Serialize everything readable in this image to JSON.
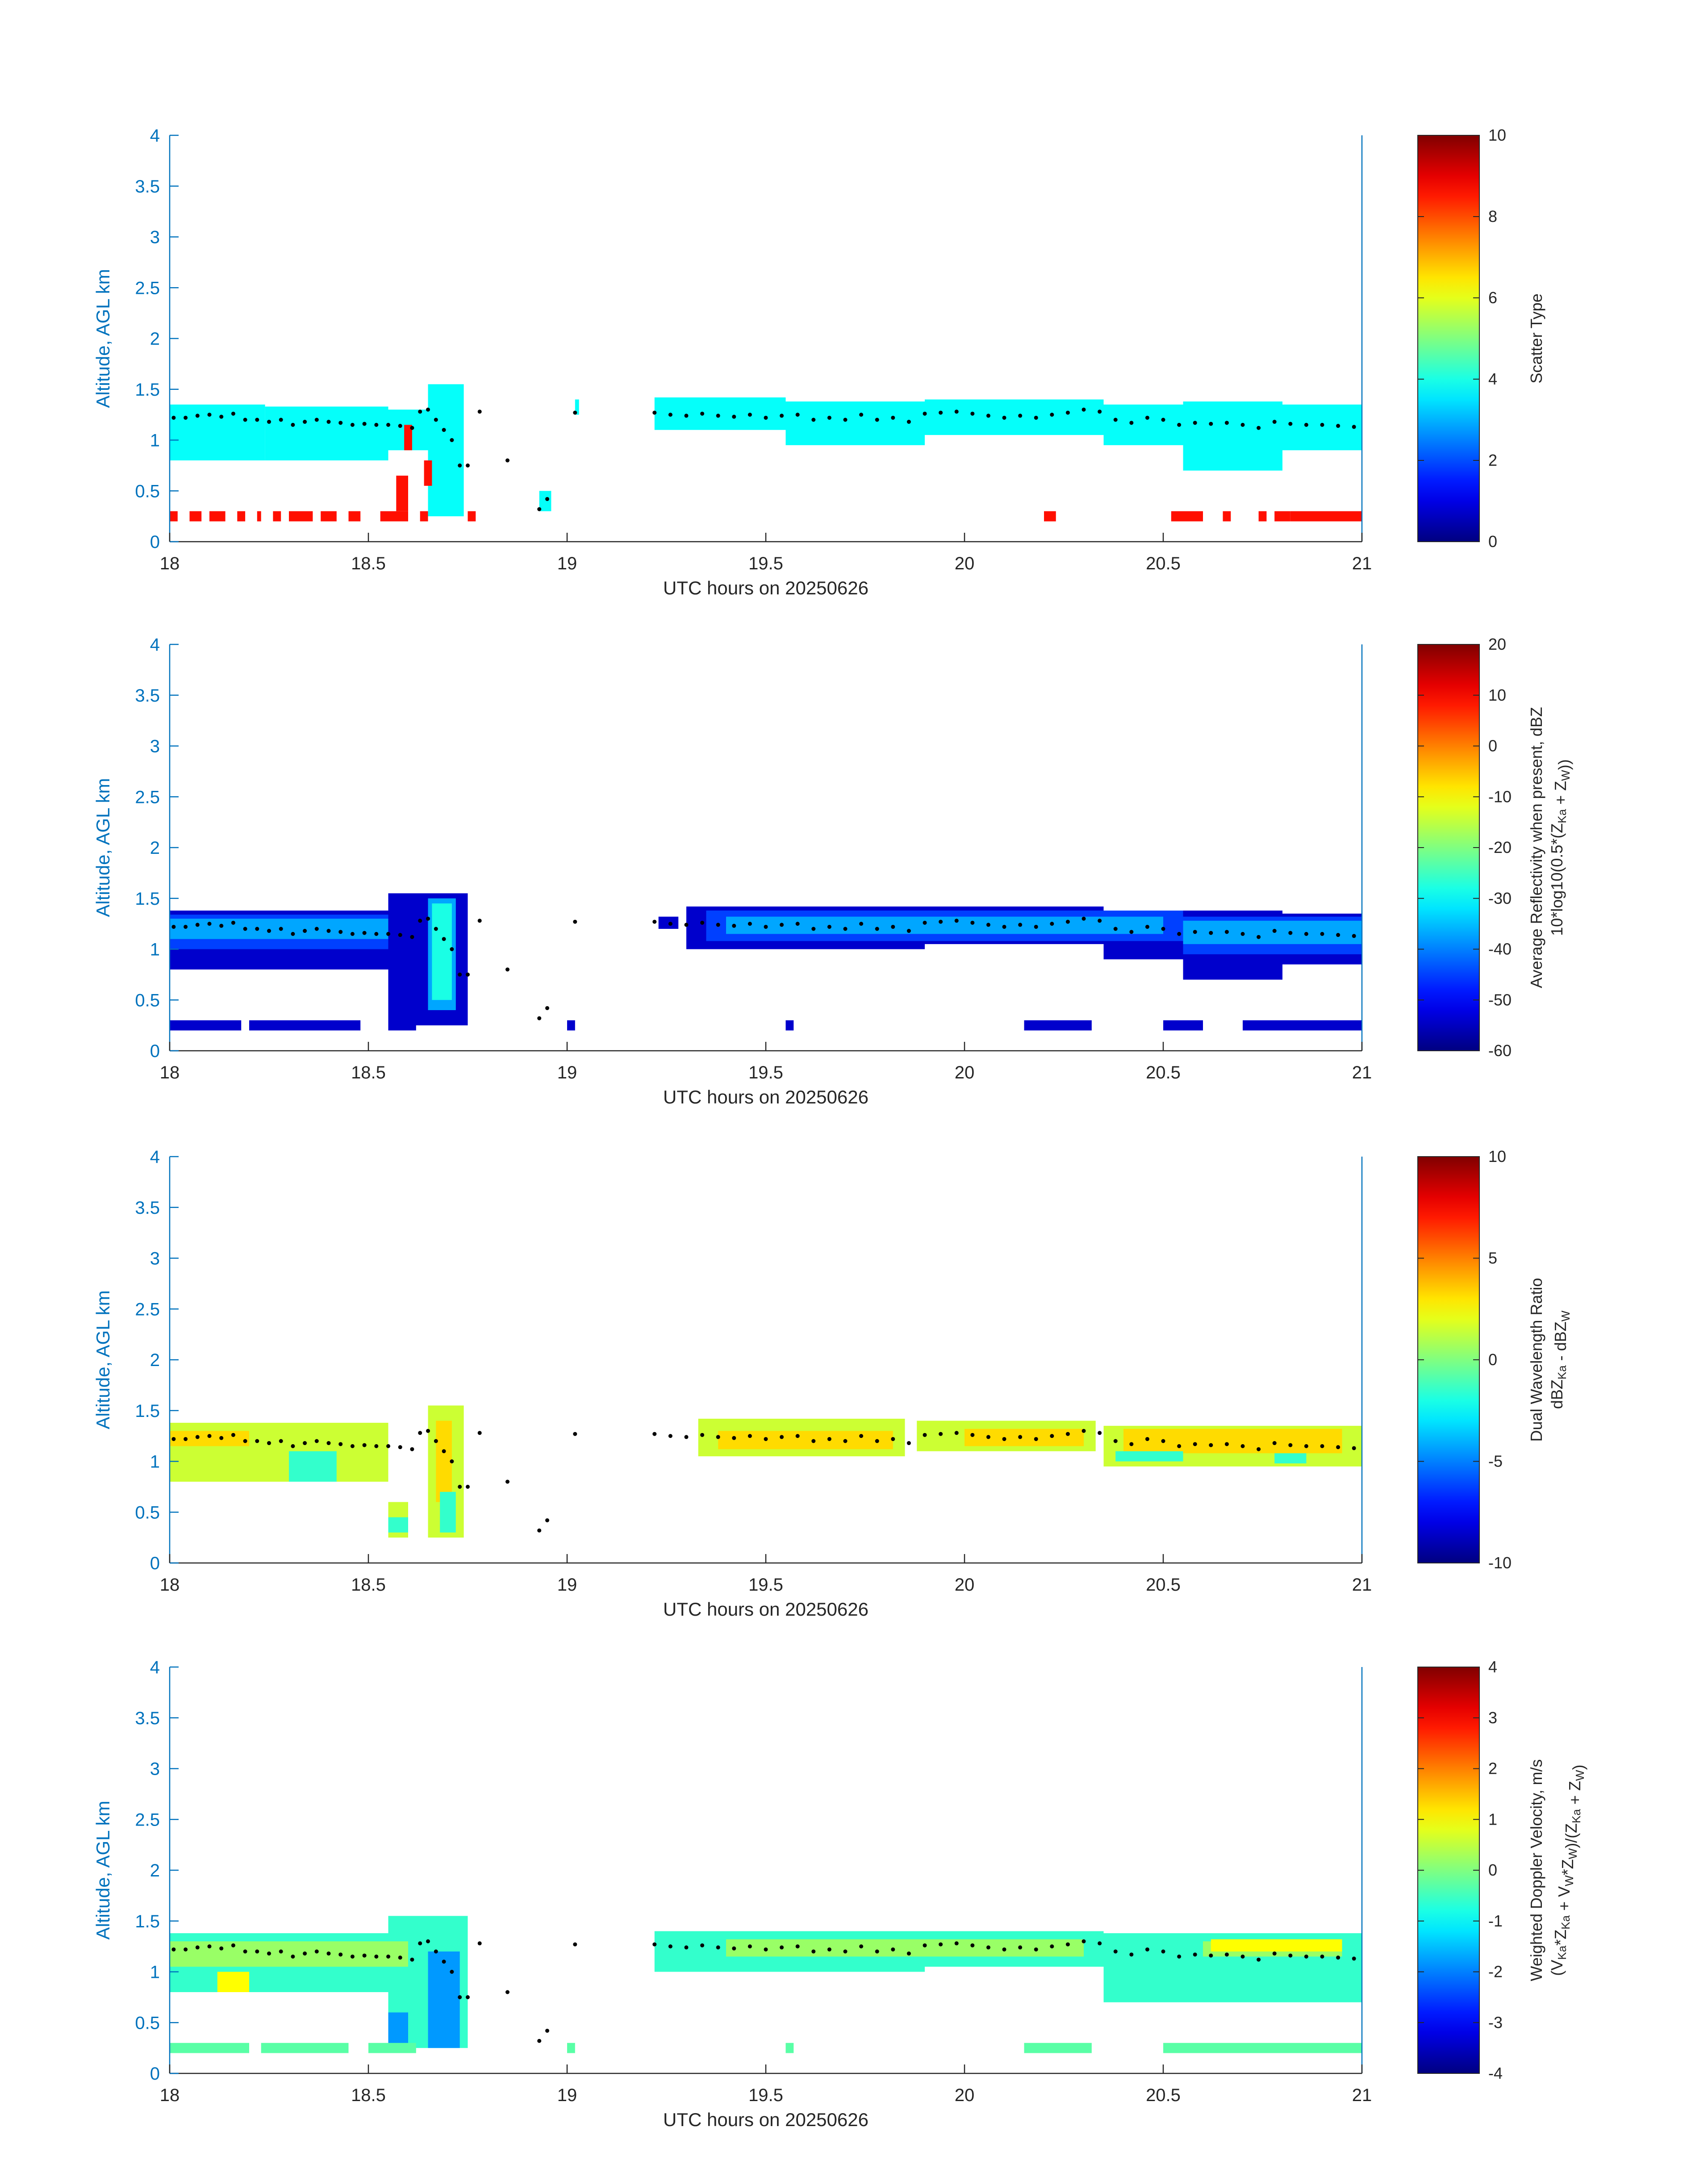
{
  "figure": {
    "domain_note": "four stacked radar time-height panels"
  },
  "chart_data": [
    {
      "type": "heatmap",
      "xlabel": "UTC hours on 20250626",
      "ylabel": "Altitude, AGL km",
      "xlim": [
        18,
        21
      ],
      "ylim": [
        0,
        4
      ],
      "xticks": [
        "18",
        "18.5",
        "19",
        "19.5",
        "20",
        "20.5",
        "21"
      ],
      "yticks": [
        "0",
        "0.5",
        "1",
        "1.5",
        "2",
        "2.5",
        "3",
        "3.5",
        "4"
      ],
      "colorbar": {
        "label_lines": [
          "Scatter Type"
        ],
        "range": [
          0,
          10
        ],
        "ticks": [
          "0",
          "2",
          "4",
          "6",
          "8",
          "10"
        ]
      },
      "layers": [
        {
          "value": 3.8,
          "segments": [
            [
              18.0,
              18.24,
              0.8,
              1.35
            ],
            [
              18.24,
              18.55,
              0.8,
              1.33
            ],
            [
              18.55,
              18.65,
              0.9,
              1.3
            ],
            [
              18.65,
              18.74,
              0.25,
              1.55
            ],
            [
              18.93,
              18.96,
              0.3,
              0.5
            ],
            [
              19.02,
              19.03,
              1.25,
              1.4
            ],
            [
              19.22,
              19.55,
              1.1,
              1.42
            ],
            [
              19.55,
              19.9,
              0.95,
              1.38
            ],
            [
              19.9,
              20.35,
              1.05,
              1.4
            ],
            [
              20.35,
              20.55,
              0.95,
              1.35
            ],
            [
              20.55,
              20.8,
              0.7,
              1.38
            ],
            [
              20.8,
              21.0,
              0.9,
              1.35
            ]
          ]
        },
        {
          "value": 8.6,
          "segments": [
            [
              18.0,
              18.02,
              0.2,
              0.3
            ],
            [
              18.05,
              18.08,
              0.2,
              0.3
            ],
            [
              18.1,
              18.14,
              0.2,
              0.3
            ],
            [
              18.17,
              18.19,
              0.2,
              0.3
            ],
            [
              18.22,
              18.23,
              0.2,
              0.3
            ],
            [
              18.26,
              18.28,
              0.2,
              0.3
            ],
            [
              18.3,
              18.36,
              0.2,
              0.3
            ],
            [
              18.38,
              18.42,
              0.2,
              0.3
            ],
            [
              18.45,
              18.48,
              0.2,
              0.3
            ],
            [
              18.53,
              18.6,
              0.2,
              0.3
            ],
            [
              18.57,
              18.6,
              0.3,
              0.65
            ],
            [
              18.63,
              18.65,
              0.2,
              0.3
            ],
            [
              18.64,
              18.66,
              0.55,
              0.8
            ],
            [
              18.59,
              18.61,
              0.9,
              1.15
            ],
            [
              18.75,
              18.77,
              0.2,
              0.3
            ],
            [
              20.2,
              20.23,
              0.2,
              0.3
            ],
            [
              20.52,
              20.6,
              0.2,
              0.3
            ],
            [
              20.65,
              20.67,
              0.2,
              0.3
            ],
            [
              20.74,
              20.76,
              0.2,
              0.3
            ],
            [
              20.78,
              20.82,
              0.2,
              0.3
            ],
            [
              20.82,
              21.0,
              0.2,
              0.3
            ]
          ]
        }
      ]
    },
    {
      "type": "heatmap",
      "xlabel": "UTC hours on 20250626",
      "ylabel": "Altitude, AGL km",
      "xlim": [
        18,
        21
      ],
      "ylim": [
        0,
        4
      ],
      "xticks": [
        "18",
        "18.5",
        "19",
        "19.5",
        "20",
        "20.5",
        "21"
      ],
      "yticks": [
        "0",
        "0.5",
        "1",
        "1.5",
        "2",
        "2.5",
        "3",
        "3.5",
        "4"
      ],
      "colorbar": {
        "label_lines": [
          "Average Reflectivity when present, dBZ",
          "10*log10(0.5*(Z_Ka + Z_W))"
        ],
        "range": [
          -60,
          20
        ],
        "ticks": [
          "-60",
          "-50",
          "-40",
          "-30",
          "-20",
          "-10",
          "0",
          "10",
          "20"
        ]
      },
      "layers": [
        {
          "value": -54,
          "segments": [
            [
              18.0,
              18.55,
              0.8,
              1.38
            ],
            [
              18.55,
              18.75,
              0.25,
              1.55
            ],
            [
              19.23,
              19.28,
              1.2,
              1.32
            ],
            [
              19.3,
              19.9,
              1.0,
              1.42
            ],
            [
              19.9,
              20.35,
              1.05,
              1.42
            ],
            [
              20.35,
              20.55,
              0.9,
              1.35
            ],
            [
              20.55,
              20.8,
              0.7,
              1.38
            ],
            [
              20.8,
              21.0,
              0.85,
              1.35
            ],
            [
              18.0,
              18.18,
              0.2,
              0.3
            ],
            [
              18.2,
              18.48,
              0.2,
              0.3
            ],
            [
              18.55,
              18.62,
              0.2,
              0.3
            ],
            [
              19.0,
              19.02,
              0.2,
              0.3
            ],
            [
              19.55,
              19.57,
              0.2,
              0.3
            ],
            [
              20.15,
              20.32,
              0.2,
              0.3
            ],
            [
              20.5,
              20.6,
              0.2,
              0.3
            ],
            [
              20.7,
              21.0,
              0.2,
              0.3
            ]
          ]
        },
        {
          "value": -45,
          "segments": [
            [
              18.0,
              18.55,
              1.0,
              1.34
            ],
            [
              19.35,
              20.55,
              1.08,
              1.38
            ],
            [
              20.55,
              21.0,
              0.95,
              1.32
            ]
          ]
        },
        {
          "value": -37,
          "segments": [
            [
              18.0,
              18.55,
              1.1,
              1.3
            ],
            [
              19.4,
              20.5,
              1.15,
              1.32
            ],
            [
              20.55,
              21.0,
              1.05,
              1.28
            ],
            [
              18.65,
              18.72,
              0.4,
              1.5
            ]
          ]
        },
        {
          "value": -28,
          "segments": [
            [
              18.66,
              18.71,
              0.5,
              1.45
            ]
          ]
        }
      ]
    },
    {
      "type": "heatmap",
      "xlabel": "UTC hours on 20250626",
      "ylabel": "Altitude, AGL km",
      "xlim": [
        18,
        21
      ],
      "ylim": [
        0,
        4
      ],
      "xticks": [
        "18",
        "18.5",
        "19",
        "19.5",
        "20",
        "20.5",
        "21"
      ],
      "yticks": [
        "0",
        "0.5",
        "1",
        "1.5",
        "2",
        "2.5",
        "3",
        "3.5",
        "4"
      ],
      "colorbar": {
        "label_lines": [
          "Dual Wavelength Ratio",
          "dBZ_Ka - dBZ_W"
        ],
        "range": [
          -10,
          10
        ],
        "ticks": [
          "-10",
          "-5",
          "0",
          "5",
          "10"
        ]
      },
      "layers": [
        {
          "value": 1.5,
          "segments": [
            [
              18.0,
              18.55,
              0.8,
              1.38
            ],
            [
              18.55,
              18.6,
              0.25,
              0.6
            ],
            [
              18.65,
              18.74,
              0.25,
              1.55
            ],
            [
              19.33,
              19.85,
              1.05,
              1.42
            ],
            [
              19.88,
              20.33,
              1.1,
              1.4
            ],
            [
              20.35,
              21.0,
              0.95,
              1.35
            ]
          ]
        },
        {
          "value": 3.2,
          "segments": [
            [
              19.38,
              19.82,
              1.12,
              1.3
            ],
            [
              20.0,
              20.3,
              1.15,
              1.32
            ],
            [
              20.4,
              20.95,
              1.08,
              1.32
            ],
            [
              18.0,
              18.2,
              1.15,
              1.3
            ],
            [
              18.67,
              18.71,
              0.6,
              1.4
            ]
          ]
        },
        {
          "value": -1.5,
          "segments": [
            [
              18.3,
              18.42,
              0.8,
              1.1
            ],
            [
              18.55,
              18.6,
              0.3,
              0.45
            ],
            [
              18.68,
              18.72,
              0.3,
              0.7
            ],
            [
              20.38,
              20.55,
              1.0,
              1.1
            ],
            [
              20.78,
              20.86,
              0.98,
              1.08
            ]
          ]
        }
      ]
    },
    {
      "type": "heatmap",
      "xlabel": "UTC hours on 20250626",
      "ylabel": "Altitude, AGL km",
      "xlim": [
        18,
        21
      ],
      "ylim": [
        0,
        4
      ],
      "xticks": [
        "18",
        "18.5",
        "19",
        "19.5",
        "20",
        "20.5",
        "21"
      ],
      "yticks": [
        "0",
        "0.5",
        "1",
        "1.5",
        "2",
        "2.5",
        "3",
        "3.5",
        "4"
      ],
      "colorbar": {
        "label_lines": [
          "Weighted Doppler Velocity, m/s",
          "(V_Ka*Z_Ka + V_W*Z_W)/(Z_Ka + Z_W)"
        ],
        "range": [
          -4,
          4
        ],
        "ticks": [
          "-4",
          "-3",
          "-2",
          "-1",
          "0",
          "1",
          "2",
          "3",
          "4"
        ]
      },
      "layers": [
        {
          "value": -0.6,
          "segments": [
            [
              18.0,
              18.55,
              0.8,
              1.38
            ],
            [
              18.55,
              18.75,
              0.25,
              1.55
            ],
            [
              19.22,
              19.9,
              1.0,
              1.4
            ],
            [
              19.9,
              20.35,
              1.05,
              1.4
            ],
            [
              20.35,
              21.0,
              0.7,
              1.38
            ]
          ]
        },
        {
          "value": 0.2,
          "segments": [
            [
              18.0,
              18.6,
              1.05,
              1.3
            ],
            [
              19.4,
              20.3,
              1.15,
              1.32
            ],
            [
              20.6,
              20.95,
              1.15,
              1.3
            ]
          ]
        },
        {
          "value": 1.0,
          "segments": [
            [
              20.62,
              20.95,
              1.2,
              1.32
            ],
            [
              18.12,
              18.2,
              0.8,
              1.0
            ]
          ]
        },
        {
          "value": -1.8,
          "segments": [
            [
              18.65,
              18.73,
              0.25,
              1.2
            ],
            [
              18.55,
              18.6,
              0.25,
              0.6
            ]
          ]
        },
        {
          "value": -0.3,
          "segments": [
            [
              18.0,
              18.2,
              0.2,
              0.3
            ],
            [
              18.23,
              18.45,
              0.2,
              0.3
            ],
            [
              18.5,
              18.62,
              0.2,
              0.3
            ],
            [
              19.0,
              19.02,
              0.2,
              0.3
            ],
            [
              19.55,
              19.57,
              0.2,
              0.3
            ],
            [
              20.15,
              20.32,
              0.2,
              0.3
            ],
            [
              20.5,
              21.0,
              0.2,
              0.3
            ]
          ]
        }
      ]
    }
  ],
  "cloud_base_series": {
    "x": [
      18.01,
      18.04,
      18.07,
      18.1,
      18.13,
      18.16,
      18.19,
      18.22,
      18.25,
      18.28,
      18.31,
      18.34,
      18.37,
      18.4,
      18.43,
      18.46,
      18.49,
      18.52,
      18.55,
      18.58,
      18.61,
      18.63,
      18.65,
      18.67,
      18.69,
      18.71,
      18.73,
      18.75,
      18.78,
      18.85,
      18.93,
      18.95,
      19.02,
      19.22,
      19.26,
      19.3,
      19.34,
      19.38,
      19.42,
      19.46,
      19.5,
      19.54,
      19.58,
      19.62,
      19.66,
      19.7,
      19.74,
      19.78,
      19.82,
      19.86,
      19.9,
      19.94,
      19.98,
      20.02,
      20.06,
      20.1,
      20.14,
      20.18,
      20.22,
      20.26,
      20.3,
      20.34,
      20.38,
      20.42,
      20.46,
      20.5,
      20.54,
      20.58,
      20.62,
      20.66,
      20.7,
      20.74,
      20.78,
      20.82,
      20.86,
      20.9,
      20.94,
      20.98
    ],
    "y": [
      1.22,
      1.22,
      1.24,
      1.25,
      1.23,
      1.26,
      1.2,
      1.2,
      1.18,
      1.2,
      1.15,
      1.18,
      1.2,
      1.18,
      1.17,
      1.15,
      1.16,
      1.15,
      1.15,
      1.14,
      1.12,
      1.28,
      1.3,
      1.2,
      1.1,
      1.0,
      0.75,
      0.75,
      1.28,
      0.8,
      0.32,
      0.42,
      1.27,
      1.27,
      1.25,
      1.24,
      1.26,
      1.24,
      1.23,
      1.25,
      1.22,
      1.24,
      1.25,
      1.2,
      1.22,
      1.2,
      1.25,
      1.2,
      1.22,
      1.18,
      1.26,
      1.27,
      1.28,
      1.26,
      1.24,
      1.22,
      1.24,
      1.22,
      1.25,
      1.27,
      1.3,
      1.28,
      1.2,
      1.17,
      1.22,
      1.2,
      1.15,
      1.17,
      1.16,
      1.17,
      1.15,
      1.12,
      1.18,
      1.16,
      1.15,
      1.15,
      1.14,
      1.13
    ]
  }
}
